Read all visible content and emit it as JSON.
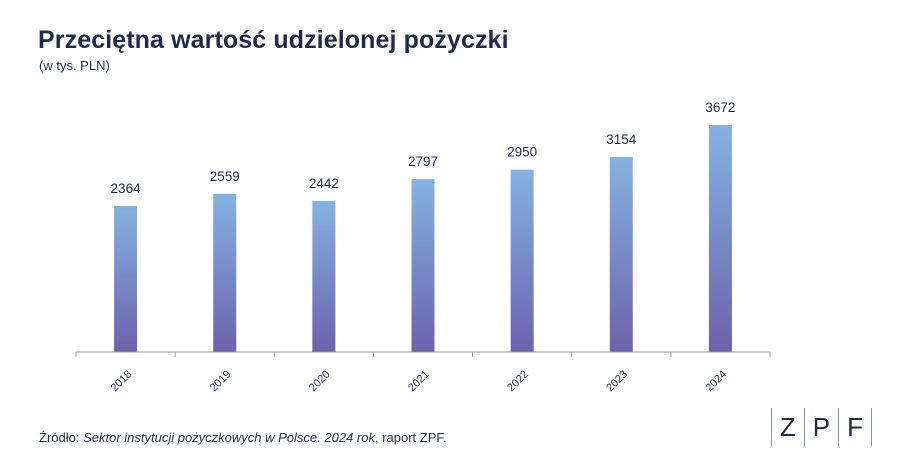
{
  "header": {
    "title": "Przeciętna wartość udzielonej pożyczki",
    "subtitle": "(w tys. PLN)"
  },
  "footer": {
    "source_prefix": "Źródło: ",
    "source_italic": "Sektor instytucji pożyczkowych w Polsce. 2024 rok",
    "source_suffix": ", raport ZPF."
  },
  "logo": {
    "letters": [
      "Z",
      "P",
      "F"
    ]
  },
  "colors": {
    "bar_top": "#85b2e2",
    "bar_bottom": "#6b62ad",
    "text": "#1f2a4d",
    "axis": "#999999"
  },
  "chart_data": {
    "type": "bar",
    "title": "Przeciętna wartość udzielonej pożyczki",
    "subtitle": "(w tys. PLN)",
    "categories": [
      "2018",
      "2019",
      "2020",
      "2021",
      "2022",
      "2023",
      "2024"
    ],
    "values": [
      2364,
      2559,
      2442,
      2797,
      2950,
      3154,
      3672
    ],
    "xlabel": "",
    "ylabel": "",
    "grid": false,
    "data_labels": true
  }
}
